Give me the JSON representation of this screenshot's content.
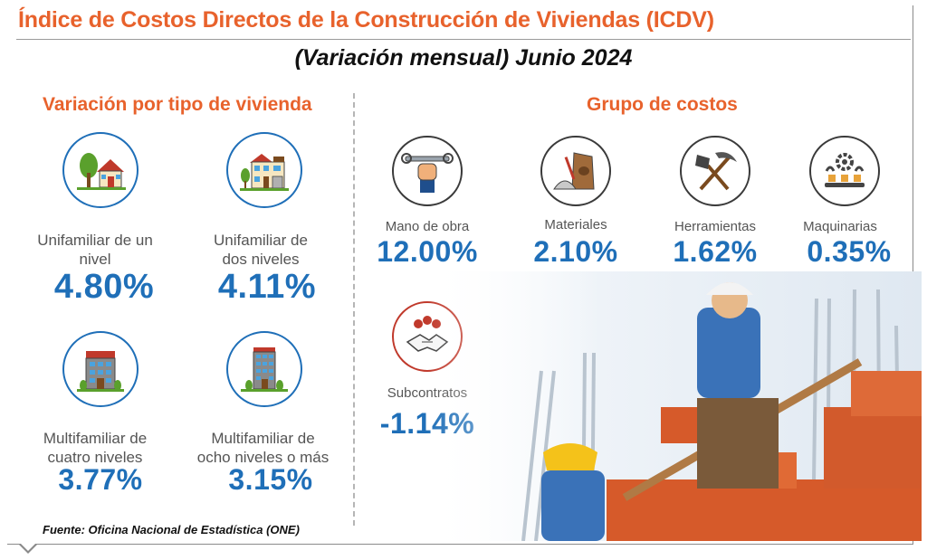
{
  "title": "Índice de Costos Directos de la Construcción de Viviendas (ICDV)",
  "subtitle": "(Variación mensual) Junio 2024",
  "left_section": {
    "title": "Variación por tipo de vivienda",
    "items": [
      {
        "label_line1": "Unifamiliar de un",
        "label_line2": "nivel",
        "value": "4.80%"
      },
      {
        "label_line1": "Unifamiliar de",
        "label_line2": "dos niveles",
        "value": "4.11%"
      },
      {
        "label_line1": "Multifamiliar de",
        "label_line2": "cuatro niveles",
        "value": "3.77%"
      },
      {
        "label_line1": "Multifamiliar de",
        "label_line2": "ocho niveles o más",
        "value": "3.15%"
      }
    ]
  },
  "right_section": {
    "title": "Grupo de costos",
    "items": [
      {
        "label": "Mano de obra",
        "value": "12.00%",
        "icon": "fist-wrench-icon"
      },
      {
        "label": "Materiales",
        "value": "2.10%",
        "icon": "cement-bag-icon"
      },
      {
        "label": "Herramientas",
        "value": "1.62%",
        "icon": "shovel-pickaxe-icon"
      },
      {
        "label": "Maquinarias",
        "value": "0.35%",
        "icon": "gear-conveyor-icon"
      },
      {
        "label": "Subcontratos",
        "value": "-1.14%",
        "icon": "handshake-icon"
      }
    ]
  },
  "source": "Fuente: Oficina Nacional de Estadística (ONE)",
  "colors": {
    "accent": "#e8622c",
    "value": "#1f6fb8",
    "text": "#555555"
  }
}
